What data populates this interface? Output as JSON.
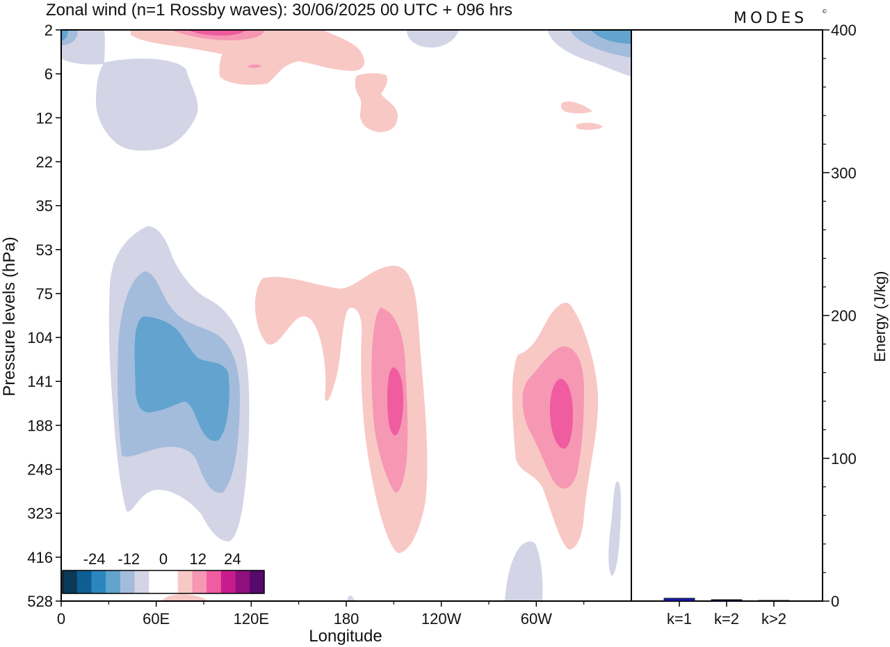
{
  "title": "Zonal wind (n=1 Rossby waves):  30/06/2025  00 UTC  + 096 hrs",
  "brand": "MODES",
  "brand_mark": "©",
  "chart_data": [
    {
      "type": "heatmap",
      "title": "Zonal wind (n=1 Rossby waves):  30/06/2025  00 UTC  + 096 hrs",
      "xlabel": "Longitude",
      "ylabel": "Pressure levels (hPa)",
      "x_ticks": [
        "0",
        "60E",
        "120E",
        "180",
        "120W",
        "60W"
      ],
      "x_tick_degrees": [
        0,
        60,
        120,
        180,
        240,
        300
      ],
      "x_range_degrees": [
        0,
        360
      ],
      "y_ticks": [
        "2",
        "6",
        "12",
        "22",
        "35",
        "53",
        "75",
        "104",
        "141",
        "188",
        "248",
        "323",
        "416",
        "528"
      ],
      "colorbar": {
        "tick_labels": [
          "-24",
          "-12",
          "0",
          "12",
          "24"
        ],
        "levels": [
          -30,
          -25,
          -20,
          -15,
          -10,
          -5,
          0,
          5,
          10,
          15,
          20,
          25,
          30
        ],
        "colors": [
          "#0b3a56",
          "#0e5e92",
          "#2b86bf",
          "#62a3cf",
          "#a3bcdc",
          "#d3d4e6",
          "#ffffff",
          "#ffffff",
          "#f8c8c5",
          "#f697b4",
          "#ef5ca0",
          "#c91c8c",
          "#8f0f7e",
          "#550a6c"
        ]
      }
    },
    {
      "type": "bar",
      "ylabel": "Energy (J/kg)",
      "ylim": [
        0,
        400
      ],
      "y_ticks": [
        "0",
        "100",
        "200",
        "300",
        "400"
      ],
      "categories": [
        "k=1",
        "k=2",
        "k>2"
      ],
      "values": [
        2,
        1,
        0.5
      ],
      "bar_colors": [
        "#1a1aa8",
        "#121245",
        "#1a1a1a"
      ]
    }
  ]
}
